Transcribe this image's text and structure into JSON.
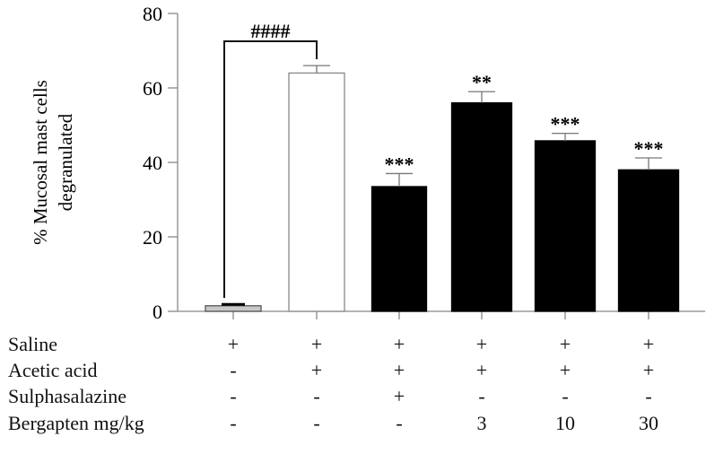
{
  "chart_data": {
    "type": "bar",
    "title": "",
    "xlabel": "",
    "ylabel": "% Mucosal mast cells degranulated",
    "ylabel_lines": [
      "% Mucosal mast cells",
      "degranulated"
    ],
    "ylim": [
      0,
      80
    ],
    "yticks": [
      0,
      20,
      40,
      60,
      80
    ],
    "grid": false,
    "legend": null,
    "categories": [
      "Saline",
      "Acetic acid",
      "Acetic acid + Sulphasalazine",
      "Acetic acid + Bergapten 3 mg/kg",
      "Acetic acid + Bergapten 10 mg/kg",
      "Acetic acid + Bergapten 30 mg/kg"
    ],
    "values": [
      1.5,
      64,
      33.5,
      56,
      45.8,
      38
    ],
    "errors": [
      0.5,
      2,
      3.5,
      3,
      2,
      3.2
    ],
    "bar_fills": [
      "#c8c8c8",
      "#ffffff",
      "#000000",
      "#000000",
      "#000000",
      "#000000"
    ],
    "bar_strokes": [
      "#555555",
      "#888888",
      "#000000",
      "#000000",
      "#000000",
      "#000000"
    ],
    "significance": [
      "",
      "",
      "***",
      "**",
      "***",
      "***"
    ],
    "comparison": {
      "from": 0,
      "to": 1,
      "label": "####"
    }
  },
  "treatment_table": {
    "rows": [
      {
        "label": "Saline",
        "cells": [
          "+",
          "+",
          "+",
          "+",
          "+",
          "+"
        ]
      },
      {
        "label": "Acetic acid",
        "cells": [
          "-",
          "+",
          "+",
          "+",
          "+",
          "+"
        ]
      },
      {
        "label": "Sulphasalazine",
        "cells": [
          "-",
          "-",
          "+",
          "-",
          "-",
          "-"
        ]
      },
      {
        "label": "Bergapten mg/kg",
        "cells": [
          "-",
          "-",
          "-",
          "3",
          "10",
          "30"
        ]
      }
    ]
  }
}
